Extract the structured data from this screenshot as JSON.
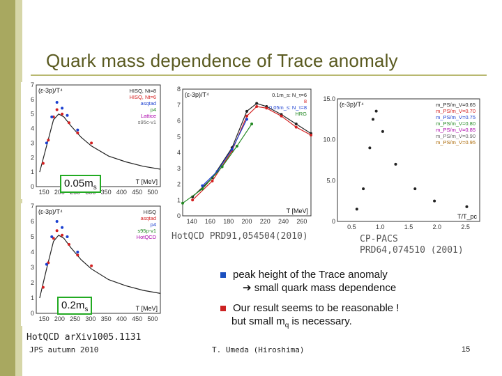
{
  "slide": {
    "title": "Quark mass dependence of Trace anomaly",
    "footer_left": "JPS autumn 2010",
    "footer_center": "T. Umeda (Hiroshima)",
    "page_number": "15",
    "colors": {
      "sidebar": "#a8a860",
      "title": "#5a5a20",
      "bullet": "#1b4fbf",
      "bullet2": "#cc2222",
      "box_border": "#22aa22"
    }
  },
  "labels": {
    "box1": "0.05m",
    "box1_sub": "s",
    "box2": "0.2m",
    "box2_sub": "s",
    "cite_hotqcd_arxiv": "HotQCD arXiv1005.1131",
    "cite_hotqcd_prd": "HotQCD PRD91,054504(2010)",
    "cite_cppacs_1": "CP-PACS",
    "cite_cppacs_2": "PRD64,074510 (2001)"
  },
  "bullets": [
    {
      "line1": "peak height of the Trace anomaly",
      "line2": "➔ small quark mass dependence"
    },
    {
      "line1": "Our result seems to be reasonable !",
      "line2_pre": "but small m",
      "line2_sub": "q",
      "line2_post": " is necessary."
    }
  ],
  "chart_data": [
    {
      "type": "scatter",
      "ylabel": "(ε-3p)/T⁴",
      "xlabel": "T [MeV]",
      "xlim": [
        140,
        500
      ],
      "ylim": [
        0,
        7
      ],
      "xticks": [
        "150",
        "200",
        "250",
        "300",
        "350",
        "400",
        "450",
        "500"
      ],
      "yticks": [
        "0",
        "1",
        "2",
        "3",
        "4",
        "5",
        "6",
        "7"
      ],
      "legend": [
        "HISQ, Nt=8",
        "HISQ, Nt=6",
        "asqtad",
        "p4",
        "Lattice",
        "s95c-v1"
      ],
      "series": [
        {
          "name": "s95c-v1",
          "line": true,
          "x": [
            150,
            170,
            190,
            205,
            220,
            240,
            270,
            300,
            350,
            400,
            450,
            500
          ],
          "y": [
            1.0,
            2.8,
            4.6,
            5.0,
            4.8,
            4.2,
            3.4,
            2.8,
            2.1,
            1.7,
            1.4,
            1.2
          ]
        },
        {
          "name": "HISQ, Nt=8",
          "x": [
            160,
            175,
            190,
            200,
            215,
            235,
            260,
            300
          ],
          "y": [
            1.6,
            3.2,
            4.8,
            5.3,
            5.0,
            4.4,
            3.7,
            3.0
          ]
        },
        {
          "name": "asqtad",
          "x": [
            170,
            185,
            200,
            215,
            230,
            260
          ],
          "y": [
            3.0,
            4.8,
            5.8,
            5.4,
            4.9,
            3.9
          ]
        }
      ]
    },
    {
      "type": "scatter",
      "ylabel": "(ε-3p)/T⁴",
      "xlabel": "T [MeV]",
      "xlim": [
        140,
        500
      ],
      "ylim": [
        0,
        7
      ],
      "xticks": [
        "150",
        "200",
        "250",
        "300",
        "350",
        "400",
        "450",
        "500"
      ],
      "yticks": [
        "0",
        "1",
        "2",
        "3",
        "4",
        "5",
        "6",
        "7"
      ],
      "legend": [
        "HISQ",
        "asqtad",
        "p4",
        "s95p-v1",
        "HotQCD"
      ],
      "series": [
        {
          "name": "s95p-v1",
          "line": true,
          "x": [
            150,
            170,
            190,
            205,
            220,
            240,
            270,
            300,
            350,
            400,
            450,
            500
          ],
          "y": [
            1.0,
            2.9,
            4.7,
            5.1,
            4.9,
            4.3,
            3.5,
            2.9,
            2.2,
            1.8,
            1.5,
            1.3
          ]
        },
        {
          "name": "HISQ",
          "x": [
            160,
            175,
            190,
            200,
            215,
            235,
            260,
            300
          ],
          "y": [
            1.7,
            3.3,
            4.9,
            5.4,
            5.1,
            4.5,
            3.8,
            3.1
          ]
        },
        {
          "name": "asqtad",
          "x": [
            170,
            185,
            200,
            215,
            230,
            260
          ],
          "y": [
            3.2,
            5.0,
            6.0,
            5.6,
            5.0,
            4.0
          ]
        }
      ]
    },
    {
      "type": "line",
      "ylabel": "(ε-3p)/T⁴",
      "xlabel": "T [MeV]",
      "xlim": [
        130,
        260
      ],
      "ylim": [
        0,
        8
      ],
      "xticks": [
        "140",
        "160",
        "180",
        "200",
        "220",
        "240",
        "260"
      ],
      "yticks": [
        "0",
        "1",
        "2",
        "3",
        "4",
        "5",
        "6",
        "7",
        "8"
      ],
      "legend": [
        "0.1m_s: N_τ=6",
        "8",
        "0.05m_s: N_τ=8",
        "HRG"
      ],
      "series": [
        {
          "name": "0.1m_s: N_τ=6",
          "x": [
            140,
            160,
            180,
            195,
            205,
            215,
            230,
            245,
            260
          ],
          "y": [
            1.2,
            2.4,
            4.3,
            6.6,
            7.1,
            6.9,
            6.4,
            5.8,
            5.2
          ]
        },
        {
          "name": "8",
          "x": [
            140,
            160,
            180,
            195,
            205,
            215,
            230,
            245,
            260
          ],
          "y": [
            1.0,
            2.2,
            4.1,
            6.3,
            6.9,
            6.8,
            6.3,
            5.6,
            5.1
          ]
        },
        {
          "name": "0.05m_s: N_τ=8",
          "x": [
            150,
            165,
            180,
            195
          ],
          "y": [
            1.9,
            2.8,
            4.2,
            6.1
          ]
        },
        {
          "name": "HRG",
          "x": [
            130,
            150,
            170,
            185,
            200
          ],
          "y": [
            0.8,
            1.7,
            3.1,
            4.4,
            5.8
          ]
        }
      ]
    },
    {
      "type": "scatter",
      "ylabel": "(ε-3p)/T⁴",
      "xlabel": "T/T_pc",
      "xlim": [
        0.5,
        2.7
      ],
      "ylim": [
        0,
        15
      ],
      "xticks": [
        "0.5",
        "1.0",
        "1.5",
        "2.0",
        "2.5"
      ],
      "yticks": [
        "0",
        "5.0",
        "10.0",
        "15.0"
      ],
      "legend": [
        "m_PS/m_V=0.65",
        "m_PS/m_V=0.70",
        "m_PS/m_V=0.75",
        "m_PS/m_V=0.80",
        "m_PS/m_V=0.85",
        "m_PS/m_V=0.90",
        "m_PS/m_V=0.95"
      ],
      "series": [
        {
          "name": "m_PS/m_V=0.65",
          "x": [
            0.8,
            0.9,
            1.0,
            1.05,
            1.1,
            1.2,
            1.4,
            1.7,
            2.0,
            2.5
          ],
          "y": [
            1.5,
            4.0,
            9.0,
            12.5,
            13.5,
            11.0,
            7.0,
            4.0,
            2.5,
            1.8
          ]
        }
      ]
    }
  ]
}
